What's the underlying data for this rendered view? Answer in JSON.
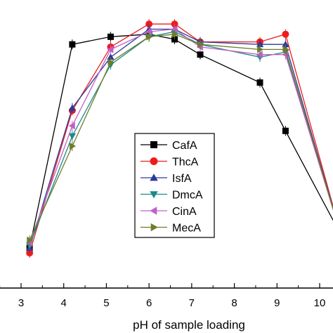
{
  "chart_data": {
    "type": "line",
    "xlabel": "pH of sample loading",
    "ylabel": "",
    "xlim": [
      1.7,
      10.5
    ],
    "ylim": [
      0,
      110
    ],
    "xticks": [
      3,
      4,
      5,
      6,
      7,
      8,
      9,
      10
    ],
    "grid": false,
    "legend_position": "center",
    "series": [
      {
        "name": "CafA",
        "color": "#000000",
        "marker": "square",
        "x": [
          3.2,
          4.2,
          5.1,
          6.0,
          6.6,
          7.2,
          8.6,
          9.2,
          10.5
        ],
        "y": [
          10,
          90,
          93,
          94,
          92,
          86,
          75,
          56,
          15
        ]
      },
      {
        "name": "ThcA",
        "color": "#ee1c1c",
        "marker": "circle",
        "x": [
          3.2,
          4.2,
          5.1,
          6.0,
          6.6,
          7.2,
          8.6,
          9.2,
          10.5
        ],
        "y": [
          8,
          64,
          89,
          98,
          98,
          91,
          91,
          94,
          15
        ]
      },
      {
        "name": "IsfA",
        "color": "#2a3a9a",
        "marker": "triangle-up",
        "x": [
          3.2,
          4.2,
          5.1,
          6.0,
          6.6,
          7.2,
          8.6,
          9.2,
          10.5
        ],
        "y": [
          10,
          65,
          85,
          96,
          96,
          91,
          90,
          90,
          15
        ]
      },
      {
        "name": "DmcA",
        "color": "#1a8a8a",
        "marker": "triangle-down",
        "x": [
          3.2,
          4.2,
          5.1,
          6.0,
          6.6,
          7.2,
          8.6,
          9.2,
          10.5
        ],
        "y": [
          11,
          54,
          82,
          93,
          95,
          90,
          85,
          87,
          15
        ]
      },
      {
        "name": "CinA",
        "color": "#c060c8",
        "marker": "triangle-left",
        "x": [
          3.2,
          4.2,
          5.1,
          6.0,
          6.6,
          7.2,
          8.6,
          9.2,
          10.5
        ],
        "y": [
          12,
          58,
          88,
          95,
          96,
          89,
          86,
          86,
          15
        ]
      },
      {
        "name": "MecA",
        "color": "#707c2a",
        "marker": "triangle-right",
        "x": [
          3.2,
          4.2,
          5.1,
          6.0,
          6.6,
          7.2,
          8.6,
          9.2,
          10.5
        ],
        "y": [
          13,
          50,
          83,
          93,
          94,
          90,
          88,
          88,
          15
        ]
      }
    ]
  }
}
